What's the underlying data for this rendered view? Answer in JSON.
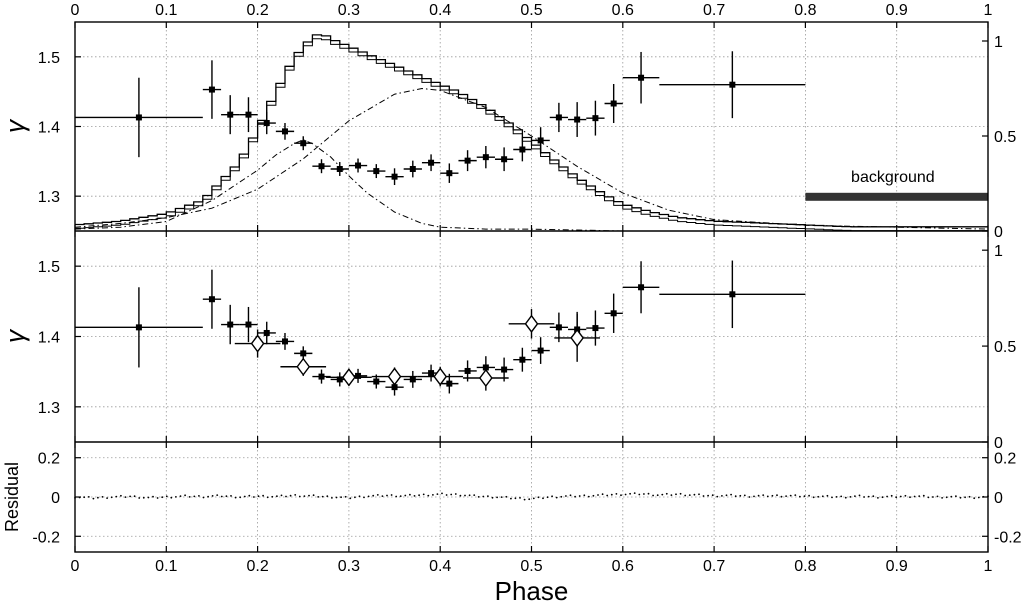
{
  "chart_data": [
    {
      "panel": "top",
      "type": "scatter",
      "ylabel": "γ",
      "xlim": [
        0,
        1
      ],
      "ylim": [
        1.25,
        1.55
      ],
      "yticks": [
        "1.3",
        "1.4",
        "1.5"
      ],
      "right_ylim": [
        0,
        1.1
      ],
      "right_yticks": [
        "0",
        "0.5",
        "1"
      ],
      "top_xticks": [
        "0",
        "0.1",
        "0.2",
        "0.3",
        "0.4",
        "0.5",
        "0.6",
        "0.7",
        "0.8",
        "0.9",
        "1"
      ],
      "annotation": "background",
      "background_band": {
        "x": [
          0.8,
          1.0
        ],
        "y": 0.18
      },
      "gamma_points": [
        {
          "x": 0.07,
          "xerr": 0.07,
          "y": 1.413,
          "yerr": 0.057
        },
        {
          "x": 0.15,
          "xerr": 0.01,
          "y": 1.453,
          "yerr": 0.042
        },
        {
          "x": 0.17,
          "xerr": 0.01,
          "y": 1.417,
          "yerr": 0.028
        },
        {
          "x": 0.19,
          "xerr": 0.01,
          "y": 1.417,
          "yerr": 0.025
        },
        {
          "x": 0.21,
          "xerr": 0.01,
          "y": 1.405,
          "yerr": 0.016
        },
        {
          "x": 0.23,
          "xerr": 0.01,
          "y": 1.393,
          "yerr": 0.012
        },
        {
          "x": 0.25,
          "xerr": 0.01,
          "y": 1.376,
          "yerr": 0.01
        },
        {
          "x": 0.27,
          "xerr": 0.01,
          "y": 1.343,
          "yerr": 0.01
        },
        {
          "x": 0.29,
          "xerr": 0.01,
          "y": 1.339,
          "yerr": 0.01
        },
        {
          "x": 0.31,
          "xerr": 0.01,
          "y": 1.344,
          "yerr": 0.01
        },
        {
          "x": 0.33,
          "xerr": 0.01,
          "y": 1.336,
          "yerr": 0.01
        },
        {
          "x": 0.35,
          "xerr": 0.01,
          "y": 1.328,
          "yerr": 0.012
        },
        {
          "x": 0.37,
          "xerr": 0.01,
          "y": 1.339,
          "yerr": 0.012
        },
        {
          "x": 0.39,
          "xerr": 0.01,
          "y": 1.348,
          "yerr": 0.012
        },
        {
          "x": 0.41,
          "xerr": 0.01,
          "y": 1.333,
          "yerr": 0.014
        },
        {
          "x": 0.43,
          "xerr": 0.01,
          "y": 1.351,
          "yerr": 0.015
        },
        {
          "x": 0.45,
          "xerr": 0.01,
          "y": 1.356,
          "yerr": 0.016
        },
        {
          "x": 0.47,
          "xerr": 0.01,
          "y": 1.353,
          "yerr": 0.017
        },
        {
          "x": 0.49,
          "xerr": 0.01,
          "y": 1.367,
          "yerr": 0.017
        },
        {
          "x": 0.51,
          "xerr": 0.01,
          "y": 1.38,
          "yerr": 0.019
        },
        {
          "x": 0.53,
          "xerr": 0.01,
          "y": 1.413,
          "yerr": 0.021
        },
        {
          "x": 0.55,
          "xerr": 0.01,
          "y": 1.41,
          "yerr": 0.025
        },
        {
          "x": 0.57,
          "xerr": 0.01,
          "y": 1.412,
          "yerr": 0.025
        },
        {
          "x": 0.59,
          "xerr": 0.01,
          "y": 1.433,
          "yerr": 0.028
        },
        {
          "x": 0.62,
          "xerr": 0.02,
          "y": 1.47,
          "yerr": 0.037
        },
        {
          "x": 0.72,
          "xerr": 0.08,
          "y": 1.46,
          "yerr": 0.048
        }
      ],
      "light_curve": {
        "x": [
          0,
          0.05,
          0.1,
          0.14,
          0.18,
          0.2,
          0.22,
          0.24,
          0.26,
          0.27,
          0.28,
          0.3,
          0.32,
          0.35,
          0.38,
          0.4,
          0.42,
          0.45,
          0.48,
          0.5,
          0.52,
          0.55,
          0.58,
          0.6,
          0.63,
          0.66,
          0.7,
          0.75,
          0.8,
          0.85,
          0.9,
          0.95,
          1.0
        ],
        "y": [
          0.02,
          0.04,
          0.08,
          0.15,
          0.35,
          0.52,
          0.72,
          0.9,
          1.01,
          1.03,
          1.0,
          0.96,
          0.92,
          0.86,
          0.8,
          0.76,
          0.72,
          0.64,
          0.54,
          0.46,
          0.38,
          0.27,
          0.18,
          0.13,
          0.09,
          0.06,
          0.04,
          0.03,
          0.02,
          0.01,
          0.01,
          0.01,
          0.01
        ]
      },
      "components": [
        {
          "x": [
            0,
            0.05,
            0.1,
            0.15,
            0.2,
            0.22,
            0.24,
            0.25,
            0.26,
            0.28,
            0.3,
            0.32,
            0.35,
            0.38,
            0.4,
            0.45,
            0.5,
            0.6,
            1.0
          ],
          "y": [
            0.01,
            0.02,
            0.05,
            0.16,
            0.32,
            0.4,
            0.46,
            0.48,
            0.46,
            0.39,
            0.29,
            0.2,
            0.1,
            0.04,
            0.02,
            0.01,
            0.01,
            0.0,
            0.0
          ]
        },
        {
          "x": [
            0,
            0.05,
            0.1,
            0.15,
            0.2,
            0.25,
            0.3,
            0.35,
            0.38,
            0.4,
            0.45,
            0.5,
            0.55,
            0.6,
            0.65,
            0.7,
            0.8,
            0.9,
            1.0
          ],
          "y": [
            0.02,
            0.04,
            0.07,
            0.12,
            0.22,
            0.38,
            0.58,
            0.72,
            0.75,
            0.74,
            0.65,
            0.5,
            0.34,
            0.2,
            0.11,
            0.06,
            0.03,
            0.02,
            0.01
          ]
        }
      ]
    },
    {
      "panel": "middle",
      "type": "scatter",
      "ylabel": "γ",
      "xlim": [
        0,
        1
      ],
      "ylim": [
        1.25,
        1.55
      ],
      "yticks": [
        "1.3",
        "1.4",
        "1.5"
      ],
      "right_ylim": [
        0,
        1.1
      ],
      "right_yticks": [
        "0",
        "0.5",
        "1"
      ],
      "gamma_points_ref": "top",
      "diamond_points": [
        {
          "x": 0.2,
          "xerr": 0.025,
          "y": 1.39,
          "yerr": 0.02
        },
        {
          "x": 0.25,
          "xerr": 0.025,
          "y": 1.357,
          "yerr": 0.013
        },
        {
          "x": 0.3,
          "xerr": 0.025,
          "y": 1.342,
          "yerr": 0.012
        },
        {
          "x": 0.35,
          "xerr": 0.025,
          "y": 1.343,
          "yerr": 0.013
        },
        {
          "x": 0.4,
          "xerr": 0.025,
          "y": 1.343,
          "yerr": 0.014
        },
        {
          "x": 0.45,
          "xerr": 0.025,
          "y": 1.341,
          "yerr": 0.018
        },
        {
          "x": 0.5,
          "xerr": 0.025,
          "y": 1.418,
          "yerr": 0.021
        },
        {
          "x": 0.55,
          "xerr": 0.025,
          "y": 1.398,
          "yerr": 0.034
        }
      ]
    },
    {
      "panel": "bottom",
      "type": "scatter",
      "xlabel": "Phase",
      "ylabel": "Residual",
      "xlim": [
        0,
        1
      ],
      "ylim": [
        -0.28,
        0.28
      ],
      "yticks": [
        "-0.2",
        "0",
        "0.2"
      ],
      "right_yticks": [
        "-0.2",
        "0",
        "0.2"
      ],
      "xticks": [
        "0",
        "0.1",
        "0.2",
        "0.3",
        "0.4",
        "0.5",
        "0.6",
        "0.7",
        "0.8",
        "0.9",
        "1"
      ],
      "residuals": {
        "x": [
          0,
          0.02,
          0.04,
          0.06,
          0.08,
          0.1,
          0.12,
          0.14,
          0.16,
          0.18,
          0.2,
          0.22,
          0.24,
          0.26,
          0.28,
          0.3,
          0.32,
          0.34,
          0.36,
          0.38,
          0.4,
          0.42,
          0.44,
          0.46,
          0.48,
          0.5,
          0.52,
          0.54,
          0.56,
          0.58,
          0.6,
          0.62,
          0.64,
          0.66,
          0.68,
          0.7,
          0.72,
          0.74,
          0.76,
          0.78,
          0.8,
          0.82,
          0.84,
          0.86,
          0.88,
          0.9,
          0.92,
          0.94,
          0.96,
          0.98,
          1.0
        ],
        "y": [
          0.0,
          -0.005,
          0.0,
          0.003,
          -0.004,
          0.0,
          0.004,
          0.002,
          0.006,
          0.0,
          0.004,
          0.002,
          0.008,
          0.005,
          0.0,
          -0.004,
          0.004,
          0.008,
          0.006,
          0.01,
          0.014,
          0.012,
          0.004,
          0.0,
          -0.006,
          -0.01,
          0.0,
          0.004,
          0.006,
          0.01,
          0.014,
          0.016,
          0.01,
          0.014,
          0.01,
          0.006,
          0.008,
          0.004,
          0.006,
          0.006,
          0.004,
          0.002,
          0.0,
          0.004,
          0.0,
          0.002,
          0.004,
          0.0,
          0.0,
          -0.002,
          0.0
        ]
      }
    }
  ]
}
